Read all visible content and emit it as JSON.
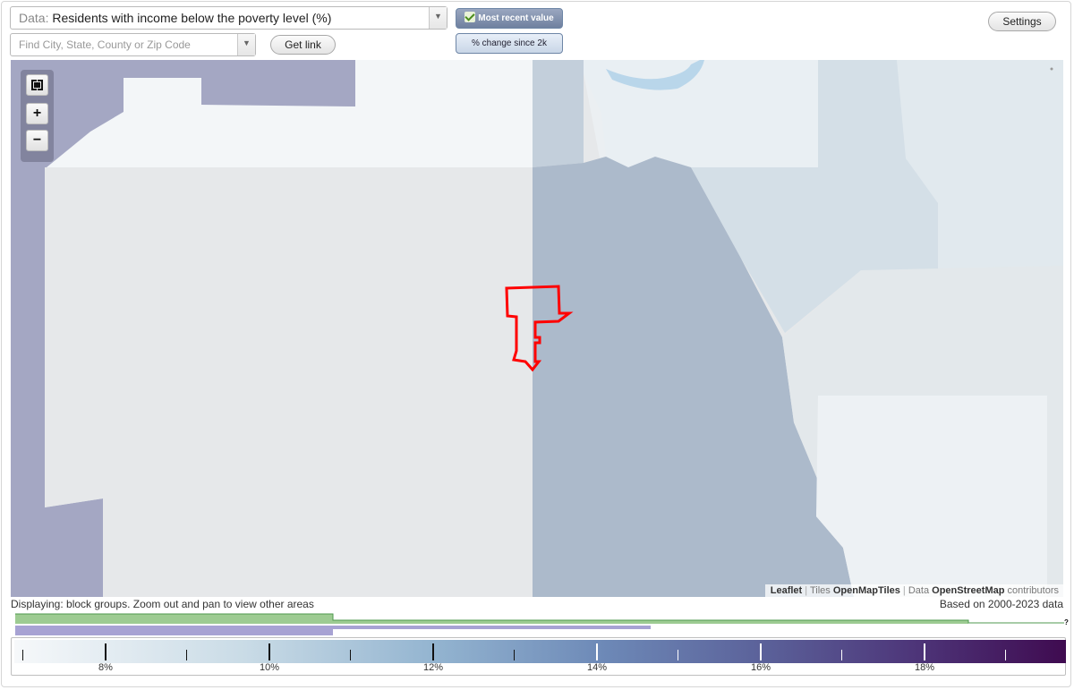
{
  "header": {
    "data_prefix": "Data:",
    "data_value": "Residents with income below the poverty level (%)",
    "search_placeholder": "Find City, State, County or Zip Code",
    "get_link_label": "Get link",
    "settings_label": "Settings",
    "mode_active_label": "Most recent value",
    "mode_inactive_label": "% change since 2k"
  },
  "map": {
    "attribution": {
      "leaflet": "Leaflet",
      "tiles_prefix": "Tiles",
      "tiles_source": "OpenMapTiles",
      "data_prefix": "Data",
      "data_source": "OpenStreetMap",
      "data_suffix": "contributors"
    },
    "highlight_color": "#ff0000"
  },
  "footer": {
    "display_note": "Displaying: block groups. Zoom out and pan to view other areas",
    "based_on": "Based on 2000-2023 data",
    "histogram_unknown": "?"
  },
  "legend": {
    "labels": [
      "8%",
      "10%",
      "12%",
      "14%",
      "16%",
      "18%"
    ],
    "colors": {
      "low": "#f6f8fa",
      "mid": "#6d89b7",
      "high": "#3f0b50"
    }
  }
}
